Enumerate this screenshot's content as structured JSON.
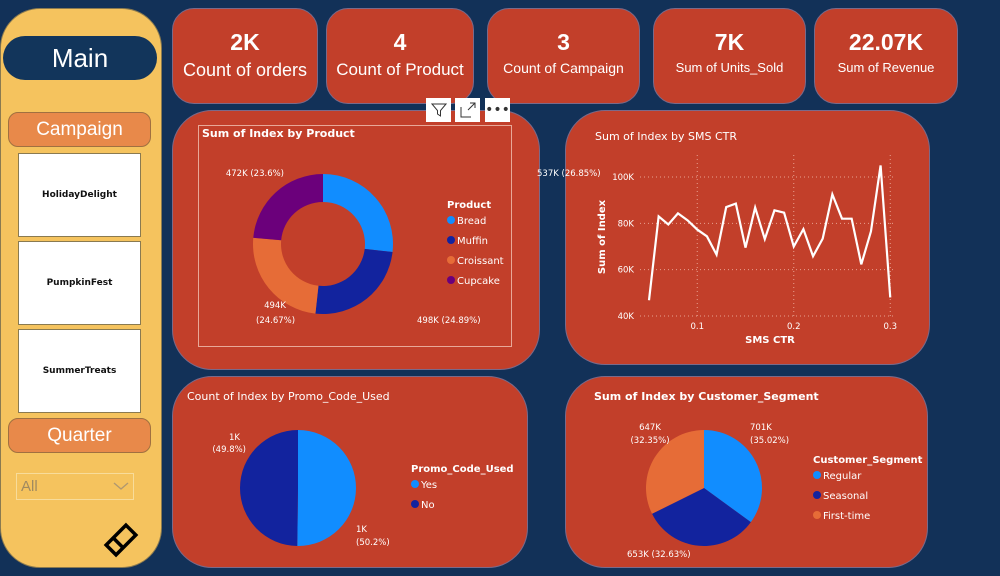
{
  "sidebar": {
    "main": "Main",
    "campaign": "Campaign",
    "campaigns": [
      "HolidayDelight",
      "PumpkinFest",
      "SummerTreats"
    ],
    "quarter": "Quarter",
    "quarter_value": "All",
    "logo_icon": "eraser-icon"
  },
  "kpis": [
    {
      "value": "2K",
      "label": "Count of orders"
    },
    {
      "value": "4",
      "label": "Count of Product"
    },
    {
      "value": "3",
      "label": "Count of Campaign"
    },
    {
      "value": "7K",
      "label": "Sum of Units_Sold"
    },
    {
      "value": "22.07K",
      "label": "Sum of Revenue"
    }
  ],
  "toolbar": {
    "icons": [
      "filter-icon",
      "focus-mode-icon",
      "more-options-icon"
    ]
  },
  "colors": {
    "background": "#123158",
    "card": "#c23f2a",
    "sidebar": "#f5c35e",
    "button": "#e8894a",
    "light_blue": "#118dff",
    "dark_blue": "#12239e",
    "orange": "#e66c37",
    "purple": "#6b007b"
  },
  "chart_data": [
    {
      "type": "pie",
      "variant": "donut",
      "title": "Sum of Index by Product",
      "legend_title": "Product",
      "legend": "right",
      "slices": [
        {
          "name": "Bread",
          "value": 537000,
          "label": "537K (26.85%)",
          "color": "#118dff"
        },
        {
          "name": "Muffin",
          "value": 498000,
          "label": "498K (24.89%)",
          "color": "#12239e"
        },
        {
          "name": "Croissant",
          "value": 494000,
          "label": "494K (24.67%)",
          "color": "#e66c37"
        },
        {
          "name": "Cupcake",
          "value": 472000,
          "label": "472K (23.6%)",
          "color": "#6b007b"
        }
      ]
    },
    {
      "type": "line",
      "title": "Sum of Index by SMS CTR",
      "xlabel": "SMS CTR",
      "ylabel": "Sum of Index",
      "xlim": [
        0.05,
        0.3
      ],
      "ylim": [
        40000,
        100000
      ],
      "xticks": [
        "0.1",
        "0.2",
        "0.3"
      ],
      "yticks": [
        "40K",
        "60K",
        "80K",
        "100K"
      ],
      "grid": true,
      "x": [
        0.05,
        0.06,
        0.07,
        0.08,
        0.09,
        0.1,
        0.11,
        0.12,
        0.13,
        0.14,
        0.15,
        0.16,
        0.17,
        0.18,
        0.19,
        0.2,
        0.21,
        0.22,
        0.23,
        0.24,
        0.25,
        0.26,
        0.27,
        0.28,
        0.29,
        0.3
      ],
      "y": [
        46800,
        83000,
        79500,
        84300,
        81300,
        77300,
        74400,
        66500,
        87000,
        88500,
        69500,
        86800,
        73200,
        85600,
        84600,
        70000,
        77500,
        65800,
        73400,
        92500,
        82000,
        82000,
        62300,
        76500,
        105000,
        48000
      ]
    },
    {
      "type": "pie",
      "title": "Count of Index by Promo_Code_Used",
      "legend_title": "Promo_Code_Used",
      "legend": "right",
      "slices": [
        {
          "name": "Yes",
          "value": 50.2,
          "label": "1K (50.2%)",
          "color": "#118dff"
        },
        {
          "name": "No",
          "value": 49.8,
          "label": "1K (49.8%)",
          "color": "#12239e"
        }
      ]
    },
    {
      "type": "pie",
      "title": "Sum of Index by Customer_Segment",
      "legend_title": "Customer_Segment",
      "legend": "right",
      "slices": [
        {
          "name": "Regular",
          "value": 701000,
          "label": "701K (35.02%)",
          "color": "#118dff"
        },
        {
          "name": "Seasonal",
          "value": 653000,
          "label": "653K (32.63%)",
          "color": "#12239e"
        },
        {
          "name": "First-time",
          "value": 647000,
          "label": "647K (32.35%)",
          "color": "#e66c37"
        }
      ]
    }
  ]
}
